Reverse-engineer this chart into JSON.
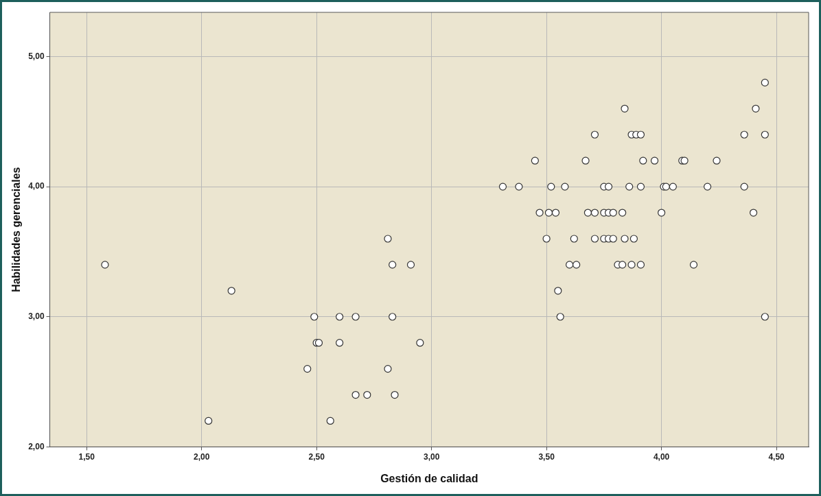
{
  "chart_data": {
    "type": "scatter",
    "xlabel": "Gestión de calidad",
    "ylabel": "Habilidades gerenciales",
    "xlim": [
      1.34,
      4.64
    ],
    "ylim": [
      2.0,
      5.34
    ],
    "xticks": [
      {
        "value": 1.5,
        "label": "1,50"
      },
      {
        "value": 2.0,
        "label": "2,00"
      },
      {
        "value": 2.5,
        "label": "2,50"
      },
      {
        "value": 3.0,
        "label": "3,00"
      },
      {
        "value": 3.5,
        "label": "3,50"
      },
      {
        "value": 4.0,
        "label": "4,00"
      },
      {
        "value": 4.5,
        "label": "4,50"
      }
    ],
    "yticks": [
      {
        "value": 2.0,
        "label": "2,00"
      },
      {
        "value": 3.0,
        "label": "3,00"
      },
      {
        "value": 4.0,
        "label": "4,00"
      },
      {
        "value": 5.0,
        "label": "5,00"
      }
    ],
    "grid": true,
    "marker": "circle",
    "series": [
      {
        "color": "#ffffff",
        "x": [
          1.58,
          2.03,
          2.13,
          2.81,
          2.83,
          2.91,
          2.49,
          2.6,
          2.67,
          2.83,
          2.5,
          2.51,
          2.6,
          2.95,
          2.46,
          2.81,
          2.67,
          2.72,
          2.84,
          2.56,
          3.84,
          3.71,
          3.87,
          3.89,
          3.91,
          3.45,
          3.67,
          3.92,
          3.97,
          4.09,
          4.1,
          4.24,
          3.31,
          3.38,
          3.52,
          3.58,
          3.75,
          3.77,
          3.86,
          3.91,
          4.01,
          4.02,
          4.05,
          4.2,
          4.36,
          3.47,
          3.51,
          3.54,
          3.68,
          3.71,
          3.75,
          3.77,
          3.79,
          3.83,
          4.0,
          4.4,
          3.5,
          3.62,
          3.71,
          3.75,
          3.77,
          3.79,
          3.84,
          3.88,
          3.6,
          3.63,
          3.81,
          3.83,
          3.87,
          3.91,
          4.14,
          3.55,
          3.56,
          4.45,
          4.45,
          4.41,
          4.36,
          4.45
        ],
        "values": [
          3.4,
          2.2,
          3.2,
          3.6,
          3.4,
          3.4,
          3.0,
          3.0,
          3.0,
          3.0,
          2.8,
          2.8,
          2.8,
          2.8,
          2.6,
          2.6,
          2.4,
          2.4,
          2.4,
          2.2,
          4.6,
          4.4,
          4.4,
          4.4,
          4.4,
          4.2,
          4.2,
          4.2,
          4.2,
          4.2,
          4.2,
          4.2,
          4.0,
          4.0,
          4.0,
          4.0,
          4.0,
          4.0,
          4.0,
          4.0,
          4.0,
          4.0,
          4.0,
          4.0,
          4.0,
          3.8,
          3.8,
          3.8,
          3.8,
          3.8,
          3.8,
          3.8,
          3.8,
          3.8,
          3.8,
          3.8,
          3.6,
          3.6,
          3.6,
          3.6,
          3.6,
          3.6,
          3.6,
          3.6,
          3.4,
          3.4,
          3.4,
          3.4,
          3.4,
          3.4,
          3.4,
          3.2,
          3.0,
          3.0,
          4.8,
          4.6,
          4.4,
          4.4
        ]
      }
    ]
  }
}
